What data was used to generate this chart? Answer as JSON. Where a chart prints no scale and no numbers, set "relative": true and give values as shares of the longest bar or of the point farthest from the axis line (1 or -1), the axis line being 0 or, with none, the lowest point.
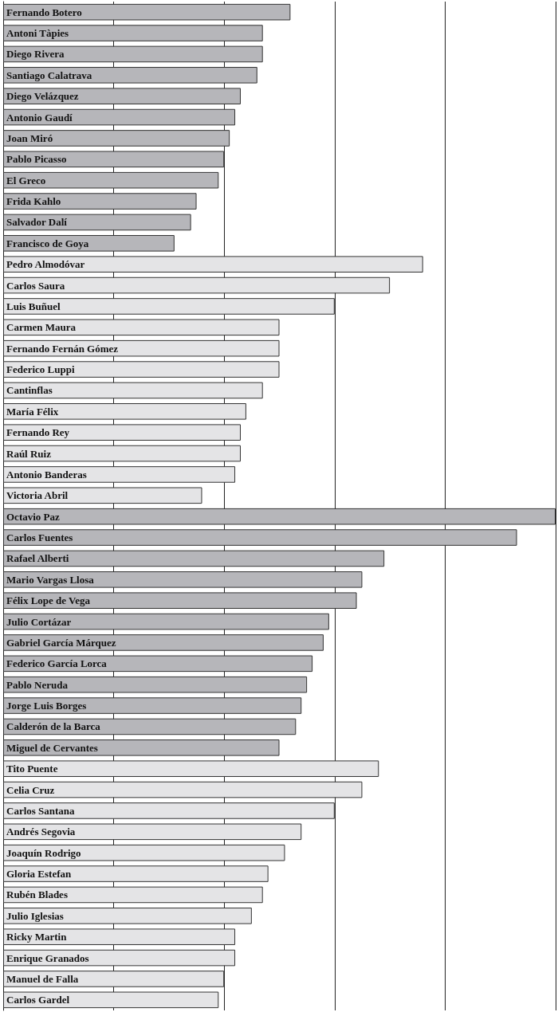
{
  "chart_data": {
    "type": "bar",
    "orientation": "horizontal",
    "relative": true,
    "grid": "x",
    "categories": [
      "Fernando Botero",
      "Antoni Tàpies",
      "Diego Rivera",
      "Santiago Calatrava",
      "Diego Velázquez",
      "Antonio Gaudí",
      "Joan Miró",
      "Pablo Picasso",
      "El Greco",
      "Frida Kahlo",
      "Salvador Dalí",
      "Francisco de Goya",
      "Pedro Almodóvar",
      "Carlos Saura",
      "Luis Buñuel",
      "Carmen Maura",
      "Fernando Fernán Gómez",
      "Federico Luppi",
      "Cantinflas",
      "María Félix",
      "Fernando Rey",
      "Raúl Ruiz",
      "Antonio Banderas",
      "Victoria Abril",
      "Octavio Paz",
      "Carlos Fuentes",
      "Rafael Alberti",
      "Mario Vargas Llosa",
      "Félix Lope de Vega",
      "Julio Cortázar",
      "Gabriel García Márquez",
      "Federico García Lorca",
      "Pablo Neruda",
      "Jorge Luis Borges",
      "Calderón de la Barca",
      "Miguel de Cervantes",
      "Tito Puente",
      "Celia Cruz",
      "Carlos Santana",
      "Andrés Segovia",
      "Joaquín Rodrigo",
      "Gloria Estefan",
      "Rubén Blades",
      "Julio Iglesias",
      "Ricky Martin",
      "Enrique Granados",
      "Manuel de Falla",
      "Carlos Gardel"
    ],
    "values": [
      0.52,
      0.47,
      0.47,
      0.46,
      0.43,
      0.42,
      0.41,
      0.4,
      0.39,
      0.35,
      0.34,
      0.31,
      0.76,
      0.7,
      0.6,
      0.5,
      0.5,
      0.5,
      0.47,
      0.44,
      0.43,
      0.43,
      0.42,
      0.36,
      1,
      0.93,
      0.69,
      0.65,
      0.64,
      0.59,
      0.58,
      0.56,
      0.55,
      0.54,
      0.53,
      0.5,
      0.68,
      0.65,
      0.6,
      0.54,
      0.51,
      0.48,
      0.47,
      0.45,
      0.42,
      0.42,
      0.4,
      0.39
    ],
    "colors": [
      "#b6b6ba",
      "#b6b6ba",
      "#b6b6ba",
      "#b6b6ba",
      "#b6b6ba",
      "#b6b6ba",
      "#b6b6ba",
      "#b6b6ba",
      "#b6b6ba",
      "#b6b6ba",
      "#b6b6ba",
      "#b6b6ba",
      "#e4e4e6",
      "#e4e4e6",
      "#e4e4e6",
      "#e4e4e6",
      "#e4e4e6",
      "#e4e4e6",
      "#e4e4e6",
      "#e4e4e6",
      "#e4e4e6",
      "#e4e4e6",
      "#e4e4e6",
      "#e4e4e6",
      "#b6b6ba",
      "#b6b6ba",
      "#b6b6ba",
      "#b6b6ba",
      "#b6b6ba",
      "#b6b6ba",
      "#b6b6ba",
      "#b6b6ba",
      "#b6b6ba",
      "#b6b6ba",
      "#b6b6ba",
      "#b6b6ba",
      "#e4e4e6",
      "#e4e4e6",
      "#e4e4e6",
      "#e4e4e6",
      "#e4e4e6",
      "#e4e4e6",
      "#e4e4e6",
      "#e4e4e6",
      "#e4e4e6",
      "#e4e4e6",
      "#e4e4e6",
      "#e4e4e6"
    ]
  }
}
